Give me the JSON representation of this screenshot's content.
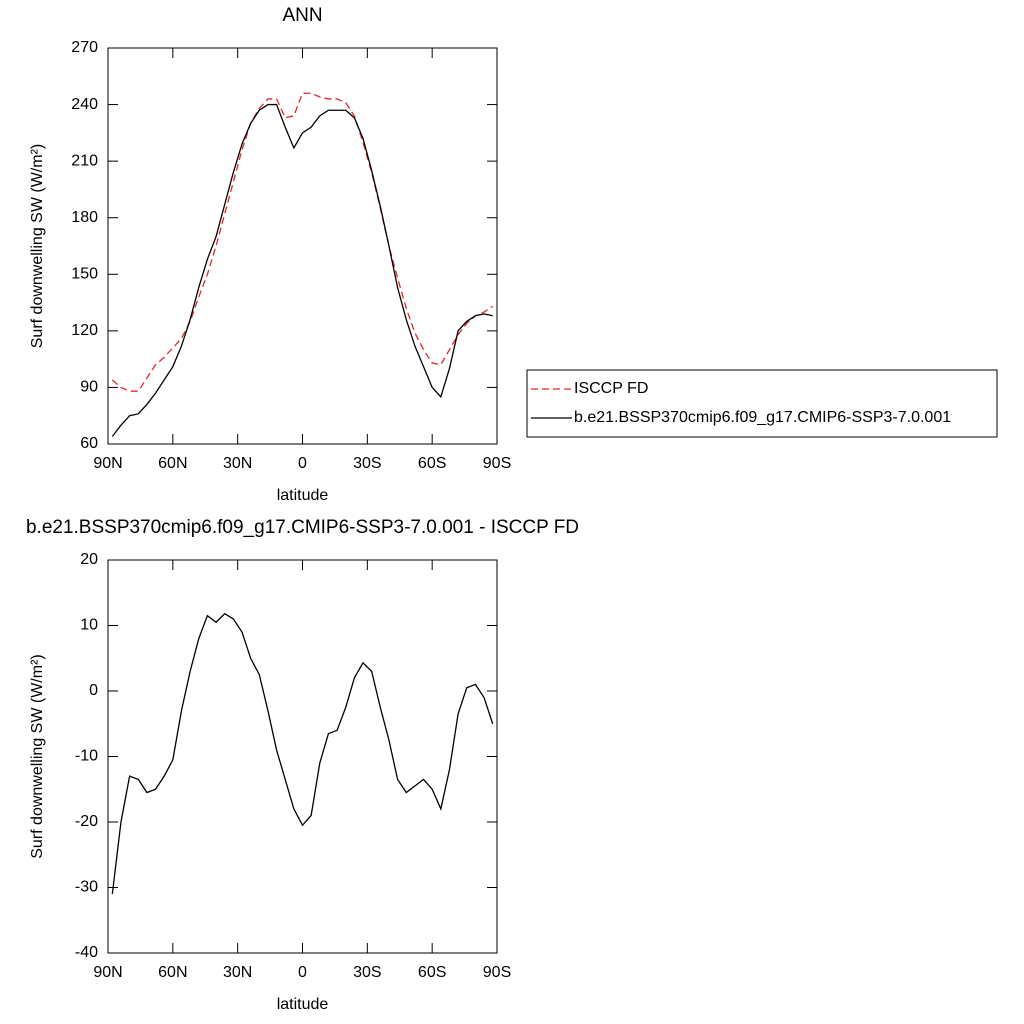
{
  "chart_data": [
    {
      "type": "line",
      "title": "ANN",
      "xlabel": "latitude",
      "ylabel": "Surf downwelling SW (W/m²)",
      "x": [
        88,
        84,
        80,
        76,
        72,
        68,
        64,
        60,
        56,
        52,
        48,
        44,
        40,
        36,
        32,
        28,
        24,
        20,
        16,
        12,
        8,
        4,
        0,
        -4,
        -8,
        -12,
        -16,
        -20,
        -24,
        -28,
        -32,
        -36,
        -40,
        -44,
        -48,
        -52,
        -56,
        -60,
        -64,
        -68,
        -72,
        -76,
        -80,
        -84,
        -88
      ],
      "series": [
        {
          "name": "ISCCP FD",
          "color": "#e8252a",
          "style": "dashed",
          "values": [
            94,
            90,
            88,
            88,
            95,
            102,
            106,
            111,
            116,
            125,
            138,
            150,
            165,
            182,
            199,
            216,
            230,
            238,
            243,
            243,
            233,
            234,
            246,
            246,
            244,
            243,
            243,
            241,
            234,
            220,
            204,
            185,
            165,
            148,
            132,
            119,
            110,
            103,
            102,
            110,
            118,
            124,
            128,
            130,
            133
          ]
        },
        {
          "name": "b.e21.BSSP370cmip6.f09_g17.CMIP6-SSP3-7.0.001",
          "color": "#000000",
          "style": "solid",
          "values": [
            64,
            70,
            75,
            76,
            81,
            87,
            94,
            101,
            112,
            126,
            143,
            158,
            170,
            187,
            204,
            219,
            230,
            237,
            240,
            240,
            228,
            217,
            225,
            228,
            234,
            237,
            237,
            237,
            233,
            222,
            205,
            186,
            165,
            143,
            126,
            112,
            101,
            90,
            85,
            100,
            120,
            125,
            128,
            129,
            128
          ]
        }
      ],
      "xlim": [
        90,
        -90
      ],
      "xticks": [
        {
          "value": 90,
          "label": "90N"
        },
        {
          "value": 60,
          "label": "60N"
        },
        {
          "value": 30,
          "label": "30N"
        },
        0,
        {
          "value": -30,
          "label": "30S"
        },
        {
          "value": -60,
          "label": "60S"
        },
        {
          "value": -90,
          "label": "90S"
        }
      ],
      "ylim": [
        60,
        270
      ],
      "yticks": [
        60,
        90,
        120,
        150,
        180,
        210,
        240,
        270
      ],
      "legend": "outside-right"
    },
    {
      "type": "line",
      "title": "b.e21.BSSP370cmip6.f09_g17.CMIP6-SSP3-7.0.001 - ISCCP FD",
      "xlabel": "latitude",
      "ylabel": "Surf downwelling SW (W/m²)",
      "x": [
        88,
        84,
        80,
        76,
        72,
        68,
        64,
        60,
        56,
        52,
        48,
        44,
        40,
        36,
        32,
        28,
        24,
        20,
        16,
        12,
        8,
        4,
        0,
        -4,
        -8,
        -12,
        -16,
        -20,
        -24,
        -28,
        -32,
        -36,
        -40,
        -44,
        -48,
        -52,
        -56,
        -60,
        -64,
        -68,
        -72,
        -76,
        -80,
        -84,
        -88
      ],
      "color": "#000000",
      "values": [
        -31,
        -20,
        -13,
        -13.5,
        -15.5,
        -15,
        -13,
        -10.5,
        -3,
        3,
        8,
        11.5,
        10.5,
        11.8,
        11,
        9,
        5,
        2.5,
        -3,
        -9,
        -13.5,
        -18,
        -20.5,
        -19,
        -11,
        -6.5,
        -6,
        -2.5,
        2,
        4.3,
        3,
        -2.5,
        -7.5,
        -13.5,
        -15.5,
        -14.5,
        -13.5,
        -15,
        -18,
        -12,
        -3.5,
        0.5,
        1,
        -1,
        -5
      ],
      "xlim": [
        90,
        -90
      ],
      "xticks": [
        {
          "value": 90,
          "label": "90N"
        },
        {
          "value": 60,
          "label": "60N"
        },
        {
          "value": 30,
          "label": "30N"
        },
        0,
        {
          "value": -30,
          "label": "30S"
        },
        {
          "value": -60,
          "label": "60S"
        },
        {
          "value": -90,
          "label": "90S"
        }
      ],
      "ylim": [
        -40,
        20
      ],
      "yticks": [
        -40,
        -30,
        -20,
        -10,
        0,
        10,
        20
      ]
    }
  ]
}
